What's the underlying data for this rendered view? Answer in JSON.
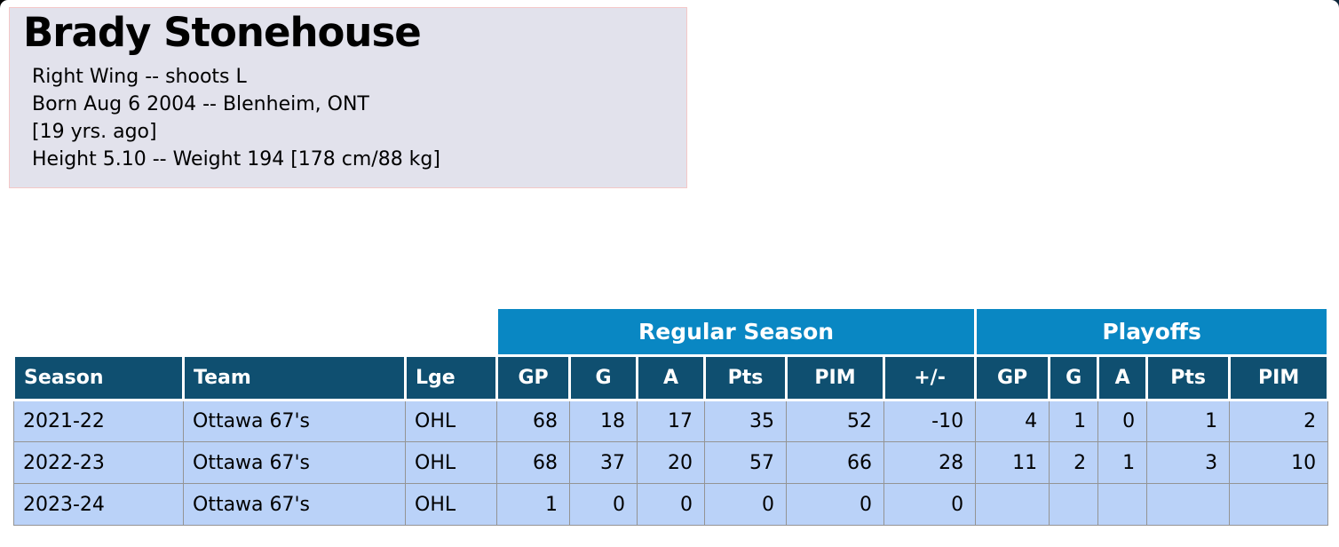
{
  "player": {
    "name": "Brady Stonehouse",
    "position_line": "Right Wing -- shoots L",
    "born_line": "Born Aug 6 2004 -- Blenheim, ONT",
    "age_line": "[19 yrs. ago]",
    "size_line": "Height 5.10 -- Weight 194 [178 cm/88 kg]"
  },
  "stats_table": {
    "group_headers": [
      {
        "label": "",
        "colspan": 3
      },
      {
        "label": "Regular Season",
        "colspan": 6
      },
      {
        "label": "Playoffs",
        "colspan": 5
      }
    ],
    "columns": [
      "Season",
      "Team",
      "Lge",
      "GP",
      "G",
      "A",
      "Pts",
      "PIM",
      "+/-",
      "GP",
      "G",
      "A",
      "Pts",
      "PIM"
    ],
    "rows": [
      [
        "2021-22",
        "Ottawa 67's",
        "OHL",
        "68",
        "18",
        "17",
        "35",
        "52",
        "-10",
        "4",
        "1",
        "0",
        "1",
        "2"
      ],
      [
        "2022-23",
        "Ottawa 67's",
        "OHL",
        "68",
        "37",
        "20",
        "57",
        "66",
        "28",
        "11",
        "2",
        "1",
        "3",
        "10"
      ],
      [
        "2023-24",
        "Ottawa 67's",
        "OHL",
        "1",
        "0",
        "0",
        "0",
        "0",
        "0",
        "",
        "",
        "",
        "",
        ""
      ]
    ]
  },
  "colors": {
    "info_box_bg": "#e2e2ec",
    "info_box_border": "#f4c8c8",
    "group_header_bg": "#0987c3",
    "column_header_bg": "#0f4f70",
    "data_row_bg": "#bad2f8",
    "grid_line": "#949494",
    "header_text": "#ffffff",
    "body_text": "#000000"
  }
}
